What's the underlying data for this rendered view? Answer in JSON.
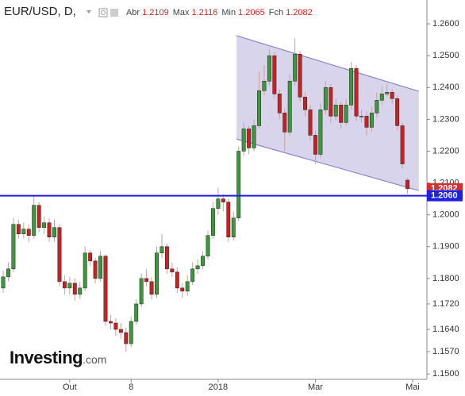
{
  "chart_data": {
    "type": "candlestick",
    "symbol": "EUR/USD, D,",
    "ohlc_legend": [
      {
        "label": "Abr",
        "value": 1.2109
      },
      {
        "label": "Max",
        "value": 1.2116
      },
      {
        "label": "Min",
        "value": 1.2065
      },
      {
        "label": "Fch",
        "value": 1.2082
      }
    ],
    "watermark": {
      "main": "Investing",
      "suffix": ".com"
    },
    "categories": [
      null,
      null,
      null,
      null,
      null,
      null,
      null,
      null,
      null,
      null,
      null,
      null,
      null,
      "Out",
      null,
      null,
      null,
      null,
      null,
      null,
      null,
      null,
      null,
      null,
      null,
      "8",
      null,
      null,
      null,
      null,
      null,
      null,
      null,
      null,
      null,
      null,
      null,
      null,
      null,
      null,
      null,
      null,
      "2018",
      null,
      null,
      null,
      null,
      null,
      null,
      null,
      null,
      null,
      null,
      null,
      null,
      null,
      null,
      null,
      null,
      null,
      null,
      "Mar",
      null,
      null,
      null,
      null,
      null,
      null,
      null,
      null,
      null,
      null,
      null,
      null,
      null,
      null,
      null,
      null,
      null,
      null,
      "Mai"
    ],
    "open": [
      1.177,
      1.1805,
      1.183,
      1.197,
      1.194,
      1.1955,
      1.1935,
      1.203,
      1.196,
      1.1975,
      1.193,
      1.196,
      1.179,
      1.177,
      1.1785,
      1.175,
      1.177,
      1.188,
      1.1855,
      1.18,
      1.187,
      1.1665,
      1.166,
      1.164,
      1.163,
      1.1595,
      1.1665,
      1.172,
      1.18,
      1.179,
      1.175,
      1.188,
      1.19,
      1.183,
      1.182,
      1.177,
      1.176,
      1.179,
      1.183,
      1.184,
      1.187,
      1.1935,
      1.202,
      1.205,
      1.204,
      1.193,
      1.199,
      1.22,
      1.227,
      1.221,
      1.228,
      1.239,
      1.242,
      1.25,
      1.238,
      1.232,
      1.226,
      1.242,
      1.2505,
      1.237,
      1.233,
      1.225,
      1.219,
      1.233,
      1.24,
      1.231,
      1.2345,
      1.229,
      1.2345,
      1.246,
      1.231,
      1.231,
      1.2275,
      1.232,
      1.236,
      1.238,
      1.2385,
      1.2365,
      1.228,
      1.2109,
      null
    ],
    "high": [
      1.1825,
      1.185,
      1.199,
      1.1985,
      1.1975,
      1.197,
      1.206,
      1.204,
      1.1995,
      1.199,
      1.1985,
      1.197,
      1.181,
      1.1805,
      1.18,
      1.179,
      1.19,
      1.189,
      1.1865,
      1.1885,
      1.1875,
      1.1685,
      1.1675,
      1.166,
      1.1645,
      1.168,
      1.1735,
      1.1815,
      1.183,
      1.1805,
      1.19,
      1.194,
      1.191,
      1.185,
      1.1835,
      1.1785,
      1.181,
      1.185,
      1.186,
      1.1885,
      1.195,
      1.204,
      1.2085,
      1.2065,
      1.205,
      1.201,
      1.2215,
      1.229,
      1.228,
      1.23,
      1.245,
      1.247,
      1.252,
      1.251,
      1.2395,
      1.2335,
      1.244,
      1.2555,
      1.2515,
      1.2385,
      1.2345,
      1.2265,
      1.235,
      1.242,
      1.241,
      1.2365,
      1.2355,
      1.2365,
      1.248,
      1.247,
      1.233,
      1.2325,
      1.234,
      1.2385,
      1.2405,
      1.241,
      1.2395,
      1.2375,
      1.229,
      1.2116,
      null
    ],
    "low": [
      1.1755,
      1.179,
      1.182,
      1.1925,
      1.1925,
      1.1915,
      1.1925,
      1.1945,
      1.194,
      1.1915,
      1.1915,
      1.1775,
      1.175,
      1.175,
      1.173,
      1.1735,
      1.176,
      1.184,
      1.1785,
      1.179,
      1.165,
      1.164,
      1.162,
      1.161,
      1.157,
      1.1585,
      1.1655,
      1.171,
      1.1775,
      1.1735,
      1.174,
      1.1865,
      1.1815,
      1.1805,
      1.1755,
      1.174,
      1.1745,
      1.178,
      1.1815,
      1.183,
      1.186,
      1.1925,
      1.2,
      1.201,
      1.1915,
      1.192,
      1.198,
      1.2185,
      1.219,
      1.22,
      1.227,
      1.2375,
      1.2405,
      1.2365,
      1.23,
      1.22,
      1.225,
      1.2405,
      1.2355,
      1.231,
      1.2235,
      1.216,
      1.218,
      1.2315,
      1.229,
      1.2295,
      1.227,
      1.228,
      1.233,
      1.2295,
      1.229,
      1.225,
      1.226,
      1.2305,
      1.2345,
      1.237,
      1.235,
      1.2265,
      1.2145,
      1.2065,
      null
    ],
    "close": [
      1.1805,
      1.183,
      1.197,
      1.194,
      1.1955,
      1.1935,
      1.203,
      1.196,
      1.1975,
      1.193,
      1.196,
      1.179,
      1.177,
      1.1785,
      1.175,
      1.177,
      1.188,
      1.1855,
      1.18,
      1.187,
      1.1665,
      1.166,
      1.164,
      1.163,
      1.1595,
      1.1665,
      1.172,
      1.18,
      1.179,
      1.175,
      1.188,
      1.19,
      1.183,
      1.182,
      1.177,
      1.176,
      1.179,
      1.183,
      1.184,
      1.187,
      1.1935,
      1.202,
      1.205,
      1.204,
      1.193,
      1.199,
      1.22,
      1.227,
      1.221,
      1.228,
      1.239,
      1.242,
      1.25,
      1.238,
      1.232,
      1.226,
      1.242,
      1.2505,
      1.237,
      1.233,
      1.225,
      1.219,
      1.233,
      1.24,
      1.231,
      1.2345,
      1.229,
      1.2345,
      1.246,
      1.231,
      1.231,
      1.2275,
      1.232,
      1.236,
      1.238,
      1.2385,
      1.2365,
      1.228,
      1.216,
      1.2082,
      null
    ],
    "up_color": "#3a9a3a",
    "down_color": "#cc1f1f",
    "wick_color": "#c9a0a0",
    "ylim": [
      1.1483,
      1.2675
    ],
    "yticks": [
      {
        "value": 1.15,
        "label": "1.1500"
      },
      {
        "value": 1.157,
        "label": "1.1570"
      },
      {
        "value": 1.164,
        "label": "1.1640"
      },
      {
        "value": 1.172,
        "label": "1.1720"
      },
      {
        "value": 1.18,
        "label": "1.1800"
      },
      {
        "value": 1.19,
        "label": "1.1900"
      },
      {
        "value": 1.2,
        "label": "1.2000"
      },
      {
        "value": 1.21,
        "label": "1.2100"
      },
      {
        "value": 1.22,
        "label": "1.2200"
      },
      {
        "value": 1.23,
        "label": "1.2300"
      },
      {
        "value": 1.24,
        "label": "1.2400"
      },
      {
        "value": 1.25,
        "label": "1.2500"
      },
      {
        "value": 1.26,
        "label": "1.2600"
      }
    ],
    "channel": {
      "x": [
        45.6,
        81.2
      ],
      "upper": [
        1.2563,
        1.2388
      ],
      "lower": [
        1.2238,
        1.2076
      ],
      "color": "#8e84c8"
    },
    "price_tags": [
      {
        "value": 1.2082,
        "label": "1.2082",
        "color": "#d32f2f",
        "line": false
      },
      {
        "value": 1.206,
        "label": "1.2060",
        "color": "#1f1fe0",
        "line": true
      }
    ]
  }
}
